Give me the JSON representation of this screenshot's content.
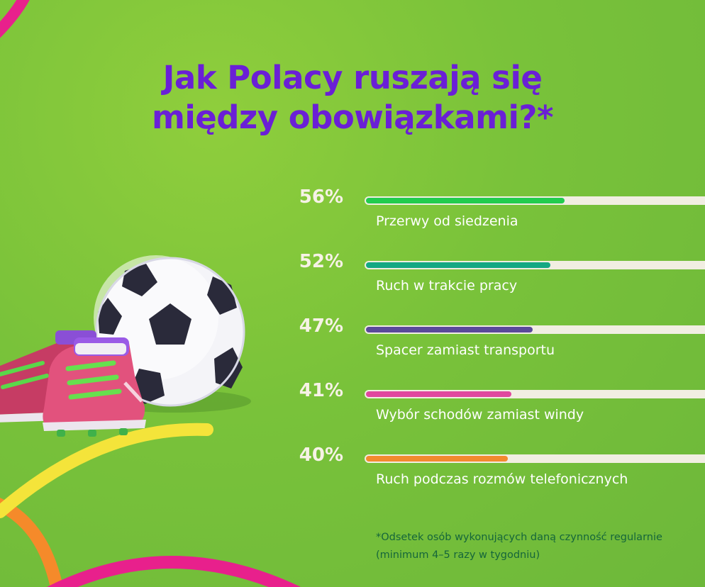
{
  "title": {
    "line1": "Jak Polacy ruszają się",
    "line2": "między obowiązkami?*"
  },
  "footnote": {
    "line1": "*Odsetek osób wykonujących daną czynność regularnie",
    "line2": "(minimum 4–5 razy w tygodniu)"
  },
  "colors": {
    "background": "#79c23a",
    "title": "#6a1fd6",
    "track": "#f1eee2"
  },
  "illustration": {
    "ball": "soccer-ball-icon",
    "shoes": "football-boots-icon"
  },
  "chart_data": {
    "type": "bar",
    "orientation": "horizontal",
    "xlim": [
      0,
      100
    ],
    "grid": false,
    "categories": [
      "Przerwy od siedzenia",
      "Ruch w trakcie pracy",
      "Spacer zamiast transportu",
      "Wybór schodów zamiast windy",
      "Ruch podczas rozmów telefonicznych"
    ],
    "values": [
      56,
      52,
      47,
      41,
      40
    ],
    "value_labels": [
      "56%",
      "52%",
      "47%",
      "41%",
      "40%"
    ],
    "bar_colors": [
      "#22cc4e",
      "#14a883",
      "#5a4a9a",
      "#e0479e",
      "#f28a2e"
    ]
  }
}
